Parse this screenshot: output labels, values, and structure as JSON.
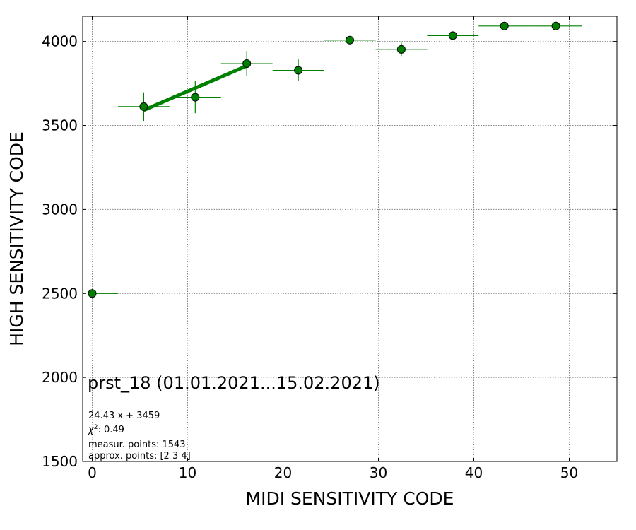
{
  "chart_data": {
    "type": "scatter",
    "title": "prst_18 (01.01.2021...15.02.2021)",
    "xlabel": "MIDI SENSITIVITY CODE",
    "ylabel": "HIGH SENSITIVITY CODE",
    "xlim": [
      -1,
      55
    ],
    "ylim": [
      1500,
      4150
    ],
    "xticks": [
      0,
      10,
      20,
      30,
      40,
      50
    ],
    "yticks": [
      1500,
      2000,
      2500,
      3000,
      3500,
      4000
    ],
    "grid": true,
    "series": [
      {
        "marker": "circle",
        "color": "#008000",
        "points": [
          {
            "x": 0,
            "y": 2500,
            "xerr_low": 0,
            "xerr_high": 2.7,
            "yerr": 0
          },
          {
            "x": 5.4,
            "y": 3612,
            "xerr_low": 2.7,
            "xerr_high": 2.7,
            "yerr": 85
          },
          {
            "x": 10.8,
            "y": 3668,
            "xerr_low": 2.7,
            "xerr_high": 2.7,
            "yerr": 95
          },
          {
            "x": 16.2,
            "y": 3868,
            "xerr_low": 2.7,
            "xerr_high": 2.7,
            "yerr": 75
          },
          {
            "x": 21.6,
            "y": 3828,
            "xerr_low": 2.7,
            "xerr_high": 2.7,
            "yerr": 65
          },
          {
            "x": 27.0,
            "y": 4008,
            "xerr_low": 2.7,
            "xerr_high": 2.7,
            "yerr": 20
          },
          {
            "x": 32.4,
            "y": 3953,
            "xerr_low": 2.7,
            "xerr_high": 2.7,
            "yerr": 40
          },
          {
            "x": 37.8,
            "y": 4035,
            "xerr_low": 2.7,
            "xerr_high": 2.7,
            "yerr": 0
          },
          {
            "x": 43.2,
            "y": 4092,
            "xerr_low": 2.7,
            "xerr_high": 2.7,
            "yerr": 0
          },
          {
            "x": 48.6,
            "y": 4092,
            "xerr_low": 2.7,
            "xerr_high": 2.7,
            "yerr": 0
          }
        ]
      }
    ],
    "fit": {
      "slope": 24.43,
      "intercept": 3459,
      "x_range": [
        5.4,
        16.2
      ],
      "color": "#008000"
    },
    "annotations": {
      "equation": "24.43 x + 3459",
      "chi2_value": ": 0.49",
      "measur_points": "measur. points: 1543",
      "approx_points": "approx. points: [2 3 4]"
    }
  }
}
